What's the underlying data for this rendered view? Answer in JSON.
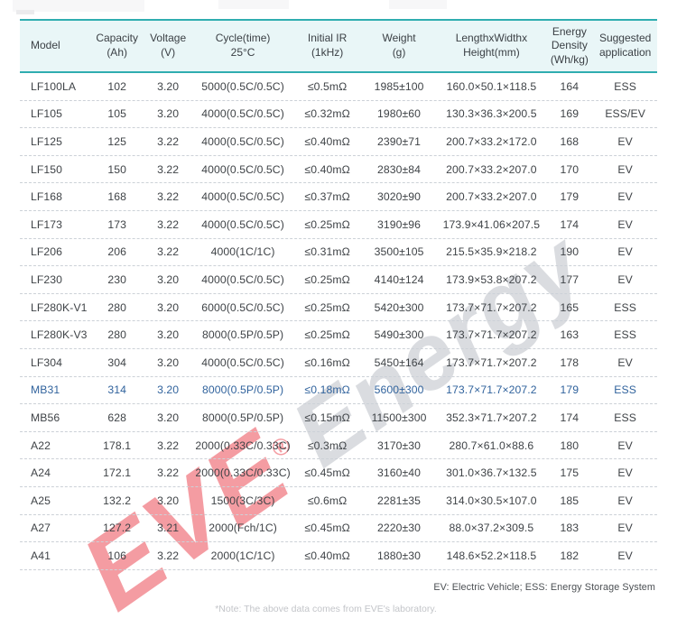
{
  "watermark": {
    "brand": "EVE",
    "reg": "®",
    "suffix": "Energy"
  },
  "footer": {
    "legend": "EV: Electric Vehicle;  ESS: Energy Storage System",
    "note": "*Note: The above data comes from EVE's laboratory."
  },
  "table": {
    "columns": [
      {
        "id": "model",
        "lines": [
          "Model"
        ]
      },
      {
        "id": "capacity",
        "lines": [
          "Capacity",
          "(Ah)"
        ]
      },
      {
        "id": "voltage",
        "lines": [
          "Voltage",
          "(V)"
        ]
      },
      {
        "id": "cycle",
        "lines": [
          "Cycle(time)",
          "25°C"
        ]
      },
      {
        "id": "ir",
        "lines": [
          "Initial IR",
          "(1kHz)"
        ]
      },
      {
        "id": "weight",
        "lines": [
          "Weight",
          "(g)"
        ]
      },
      {
        "id": "size",
        "lines": [
          "LengthxWidthx",
          "Height(mm)"
        ]
      },
      {
        "id": "density",
        "lines": [
          "Energy",
          "Density",
          "(Wh/kg)"
        ]
      },
      {
        "id": "app",
        "lines": [
          "Suggested",
          "application"
        ]
      }
    ],
    "highlighted_row_index": 11,
    "rows": [
      [
        "LF100LA",
        "102",
        "3.20",
        "5000(0.5C/0.5C)",
        "≤0.5mΩ",
        "1985±100",
        "160.0×50.1×118.5",
        "164",
        "ESS"
      ],
      [
        "LF105",
        "105",
        "3.20",
        "4000(0.5C/0.5C)",
        "≤0.32mΩ",
        "1980±60",
        "130.3×36.3×200.5",
        "169",
        "ESS/EV"
      ],
      [
        "LF125",
        "125",
        "3.22",
        "4000(0.5C/0.5C)",
        "≤0.40mΩ",
        "2390±71",
        "200.7×33.2×172.0",
        "168",
        "EV"
      ],
      [
        "LF150",
        "150",
        "3.22",
        "4000(0.5C/0.5C)",
        "≤0.40mΩ",
        "2830±84",
        "200.7×33.2×207.0",
        "170",
        "EV"
      ],
      [
        "LF168",
        "168",
        "3.22",
        "4000(0.5C/0.5C)",
        "≤0.37mΩ",
        "3020±90",
        "200.7×33.2×207.0",
        "179",
        "EV"
      ],
      [
        "LF173",
        "173",
        "3.22",
        "4000(0.5C/0.5C)",
        "≤0.25mΩ",
        "3190±96",
        "173.9×41.06×207.5",
        "174",
        "EV"
      ],
      [
        "LF206",
        "206",
        "3.22",
        "4000(1C/1C)",
        "≤0.31mΩ",
        "3500±105",
        "215.5×35.9×218.2",
        "190",
        "EV"
      ],
      [
        "LF230",
        "230",
        "3.20",
        "4000(0.5C/0.5C)",
        "≤0.25mΩ",
        "4140±124",
        "173.9×53.8×207.2",
        "177",
        "EV"
      ],
      [
        "LF280K-V1",
        "280",
        "3.20",
        "6000(0.5C/0.5C)",
        "≤0.25mΩ",
        "5420±300",
        "173.7×71.7×207.2",
        "165",
        "ESS"
      ],
      [
        "LF280K-V3",
        "280",
        "3.20",
        "8000(0.5P/0.5P)",
        "≤0.25mΩ",
        "5490±300",
        "173.7×71.7×207.2",
        "163",
        "ESS"
      ],
      [
        "LF304",
        "304",
        "3.20",
        "4000(0.5C/0.5C)",
        "≤0.16mΩ",
        "5450±164",
        "173.7×71.7×207.2",
        "178",
        "EV"
      ],
      [
        "MB31",
        "314",
        "3.20",
        "8000(0.5P/0.5P)",
        "≤0.18mΩ",
        "5600±300",
        "173.7×71.7×207.2",
        "179",
        "ESS"
      ],
      [
        "MB56",
        "628",
        "3.20",
        "8000(0.5P/0.5P)",
        "≤0.15mΩ",
        "11500±300",
        "352.3×71.7×207.2",
        "174",
        "ESS"
      ],
      [
        "A22",
        "178.1",
        "3.22",
        "2000(0.33C/0.33C)",
        "≤0.3mΩ",
        "3170±30",
        "280.7×61.0×88.6",
        "180",
        "EV"
      ],
      [
        "A24",
        "172.1",
        "3.22",
        "2000(0.33C/0.33C)",
        "≤0.45mΩ",
        "3160±40",
        "301.0×36.7×132.5",
        "175",
        "EV"
      ],
      [
        "A25",
        "132.2",
        "3.20",
        "1500(3C/3C)",
        "≤0.6mΩ",
        "2281±35",
        "314.0×30.5×107.0",
        "185",
        "EV"
      ],
      [
        "A27",
        "127.2",
        "3.21",
        "2000(Fch/1C)",
        "≤0.45mΩ",
        "2220±30",
        "88.0×37.2×309.5",
        "183",
        "EV"
      ],
      [
        "A41",
        "106",
        "3.22",
        "2000(1C/1C)",
        "≤0.40mΩ",
        "1880±30",
        "148.6×52.2×118.5",
        "182",
        "EV"
      ]
    ]
  },
  "colors": {
    "header_bg": "#e9f6f7",
    "header_border": "#2fadb0",
    "highlight_text": "#31639d",
    "watermark_red": "#e93946",
    "watermark_gray": "#a8acb4"
  }
}
